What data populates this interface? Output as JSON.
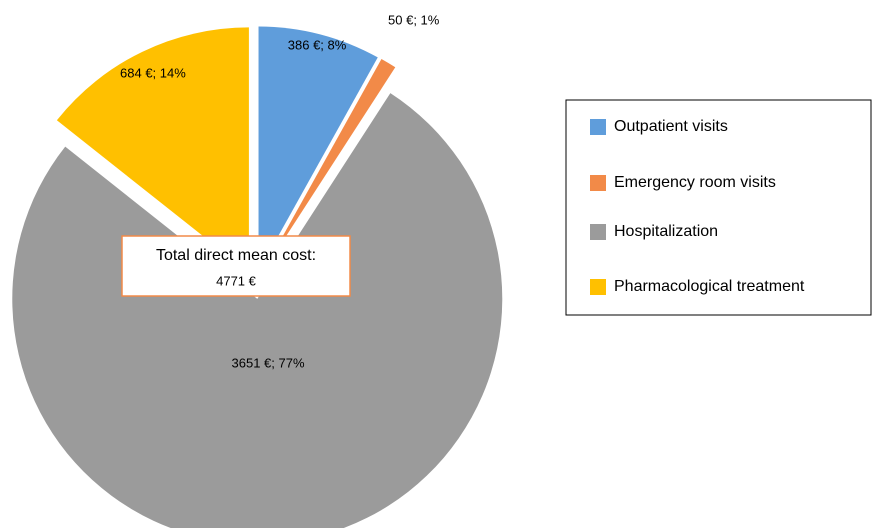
{
  "chart_data": {
    "type": "pie",
    "categories": [
      "Outpatient visits",
      "Emergency room visits",
      "Hospitalization",
      "Pharmacological treatment"
    ],
    "values": [
      386,
      50,
      3651,
      684
    ],
    "value_labels": [
      "386 €; 8%",
      "50 €; 1%",
      "3651 €; 77%",
      "684 €; 14%"
    ],
    "colors": [
      "#5f9ddb",
      "#f28a48",
      "#9b9b9b",
      "#ffc000"
    ],
    "annotation": [
      "Total direct mean cost:",
      "4771 €"
    ],
    "legend": "right"
  }
}
